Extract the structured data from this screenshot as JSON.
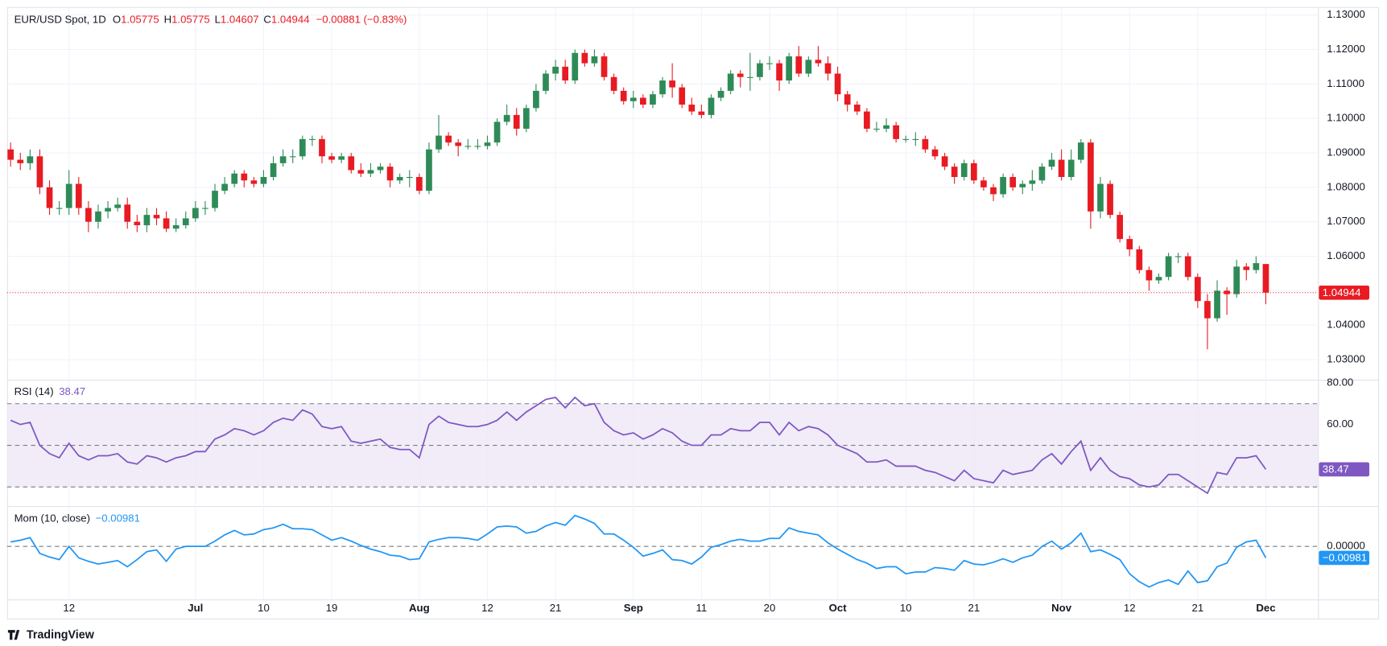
{
  "header": {
    "title": "EUR/USD Spot, 1D",
    "ohlc": [
      {
        "key": "O",
        "value": "1.05775"
      },
      {
        "key": "H",
        "value": "1.05775"
      },
      {
        "key": "L",
        "value": "1.04607"
      },
      {
        "key": "C",
        "value": "1.04944"
      }
    ],
    "change": "−0.00881 (−0.83%)"
  },
  "footer": "TradingView",
  "chart_data": [
    {
      "type": "candlestick",
      "up_color": "#2e8b57",
      "down_color": "#e81b23",
      "grid": true,
      "last_price_line": true,
      "ylim": [
        1.0243,
        1.1323
      ],
      "yticks": [
        {
          "value": 1.03,
          "label": "1.03000"
        },
        {
          "value": 1.04,
          "label": "1.04000"
        },
        {
          "value": 1.05,
          "label": "1.05000"
        },
        {
          "value": 1.06,
          "label": "1.06000"
        },
        {
          "value": 1.07,
          "label": "1.07000"
        },
        {
          "value": 1.08,
          "label": "1.08000"
        },
        {
          "value": 1.09,
          "label": "1.09000"
        },
        {
          "value": 1.1,
          "label": "1.10000"
        },
        {
          "value": 1.11,
          "label": "1.11000"
        },
        {
          "value": 1.12,
          "label": "1.12000"
        },
        {
          "value": 1.13,
          "label": "1.13000"
        }
      ],
      "open": [
        1.091,
        1.088,
        1.087,
        1.089,
        1.08,
        1.074,
        1.074,
        1.081,
        1.074,
        1.07,
        1.073,
        1.074,
        1.075,
        1.07,
        1.069,
        1.072,
        1.071,
        1.068,
        1.069,
        1.071,
        1.074,
        1.074,
        1.079,
        1.081,
        1.084,
        1.082,
        1.081,
        1.083,
        1.087,
        1.089,
        1.089,
        1.094,
        1.094,
        1.089,
        1.088,
        1.089,
        1.085,
        1.084,
        1.085,
        1.086,
        1.082,
        1.083,
        1.083,
        1.079,
        1.091,
        1.095,
        1.093,
        1.092,
        1.092,
        1.092,
        1.093,
        1.099,
        1.101,
        1.097,
        1.103,
        1.108,
        1.113,
        1.115,
        1.111,
        1.119,
        1.116,
        1.118,
        1.112,
        1.108,
        1.105,
        1.106,
        1.104,
        1.107,
        1.111,
        1.109,
        1.104,
        1.102,
        1.101,
        1.106,
        1.108,
        1.113,
        1.112,
        1.112,
        1.116,
        1.116,
        1.111,
        1.118,
        1.113,
        1.117,
        1.116,
        1.113,
        1.107,
        1.104,
        1.102,
        1.097,
        1.097,
        1.098,
        1.094,
        1.094,
        1.094,
        1.091,
        1.089,
        1.086,
        1.083,
        1.087,
        1.082,
        1.08,
        1.078,
        1.083,
        1.08,
        1.081,
        1.082,
        1.086,
        1.088,
        1.083,
        1.088,
        1.093,
        1.073,
        1.081,
        1.072,
        1.065,
        1.062,
        1.056,
        1.053,
        1.054,
        1.06,
        1.06,
        1.054,
        1.047,
        1.042,
        1.05,
        1.049,
        1.057,
        1.056,
        1.05775
      ],
      "high": [
        1.093,
        1.09,
        1.091,
        1.091,
        1.082,
        1.076,
        1.085,
        1.083,
        1.076,
        1.075,
        1.076,
        1.077,
        1.077,
        1.072,
        1.074,
        1.074,
        1.073,
        1.071,
        1.073,
        1.076,
        1.076,
        1.081,
        1.083,
        1.085,
        1.085,
        1.083,
        1.085,
        1.089,
        1.091,
        1.091,
        1.095,
        1.095,
        1.095,
        1.09,
        1.09,
        1.09,
        1.087,
        1.087,
        1.087,
        1.087,
        1.084,
        1.085,
        1.084,
        1.093,
        1.101,
        1.096,
        1.094,
        1.094,
        1.094,
        1.095,
        1.1,
        1.104,
        1.103,
        1.104,
        1.11,
        1.114,
        1.117,
        1.117,
        1.12,
        1.12,
        1.12,
        1.119,
        1.113,
        1.109,
        1.108,
        1.107,
        1.108,
        1.112,
        1.116,
        1.11,
        1.106,
        1.104,
        1.107,
        1.109,
        1.114,
        1.114,
        1.119,
        1.117,
        1.118,
        1.117,
        1.119,
        1.121,
        1.118,
        1.121,
        1.118,
        1.115,
        1.108,
        1.105,
        1.103,
        1.099,
        1.1,
        1.099,
        1.095,
        1.096,
        1.095,
        1.092,
        1.09,
        1.087,
        1.088,
        1.088,
        1.083,
        1.081,
        1.084,
        1.084,
        1.082,
        1.085,
        1.087,
        1.09,
        1.091,
        1.091,
        1.094,
        1.094,
        1.083,
        1.082,
        1.073,
        1.066,
        1.063,
        1.057,
        1.055,
        1.061,
        1.061,
        1.061,
        1.055,
        1.049,
        1.053,
        1.051,
        1.059,
        1.058,
        1.06,
        1.05775
      ],
      "low": [
        1.086,
        1.085,
        1.085,
        1.078,
        1.072,
        1.072,
        1.072,
        1.072,
        1.067,
        1.068,
        1.071,
        1.073,
        1.068,
        1.067,
        1.067,
        1.069,
        1.067,
        1.067,
        1.068,
        1.07,
        1.072,
        1.073,
        1.078,
        1.08,
        1.08,
        1.08,
        1.08,
        1.082,
        1.086,
        1.087,
        1.088,
        1.092,
        1.087,
        1.087,
        1.087,
        1.084,
        1.083,
        1.083,
        1.084,
        1.08,
        1.081,
        1.08,
        1.078,
        1.078,
        1.09,
        1.092,
        1.089,
        1.091,
        1.091,
        1.091,
        1.092,
        1.098,
        1.095,
        1.096,
        1.102,
        1.107,
        1.111,
        1.11,
        1.11,
        1.115,
        1.115,
        1.111,
        1.107,
        1.104,
        1.103,
        1.103,
        1.103,
        1.106,
        1.106,
        1.103,
        1.101,
        1.1,
        1.1,
        1.105,
        1.107,
        1.109,
        1.108,
        1.111,
        1.114,
        1.108,
        1.11,
        1.112,
        1.112,
        1.115,
        1.111,
        1.105,
        1.102,
        1.101,
        1.096,
        1.096,
        1.096,
        1.093,
        1.093,
        1.092,
        1.09,
        1.088,
        1.085,
        1.081,
        1.082,
        1.081,
        1.079,
        1.076,
        1.077,
        1.079,
        1.078,
        1.079,
        1.081,
        1.085,
        1.082,
        1.082,
        1.087,
        1.068,
        1.071,
        1.071,
        1.064,
        1.06,
        1.055,
        1.05,
        1.052,
        1.053,
        1.058,
        1.053,
        1.045,
        1.033,
        1.041,
        1.043,
        1.048,
        1.053,
        1.055,
        1.04607
      ],
      "close": [
        1.088,
        1.087,
        1.089,
        1.08,
        1.074,
        1.074,
        1.081,
        1.074,
        1.07,
        1.073,
        1.074,
        1.075,
        1.07,
        1.069,
        1.072,
        1.071,
        1.068,
        1.069,
        1.071,
        1.074,
        1.074,
        1.079,
        1.081,
        1.084,
        1.082,
        1.081,
        1.083,
        1.087,
        1.089,
        1.089,
        1.094,
        1.094,
        1.089,
        1.088,
        1.089,
        1.085,
        1.084,
        1.085,
        1.086,
        1.082,
        1.083,
        1.083,
        1.079,
        1.091,
        1.095,
        1.093,
        1.092,
        1.092,
        1.092,
        1.093,
        1.099,
        1.101,
        1.097,
        1.103,
        1.108,
        1.113,
        1.115,
        1.111,
        1.119,
        1.116,
        1.118,
        1.112,
        1.108,
        1.105,
        1.106,
        1.104,
        1.107,
        1.111,
        1.109,
        1.104,
        1.102,
        1.101,
        1.106,
        1.108,
        1.113,
        1.112,
        1.112,
        1.116,
        1.116,
        1.111,
        1.118,
        1.113,
        1.117,
        1.116,
        1.113,
        1.107,
        1.104,
        1.102,
        1.097,
        1.097,
        1.098,
        1.094,
        1.094,
        1.094,
        1.091,
        1.089,
        1.086,
        1.083,
        1.087,
        1.082,
        1.08,
        1.078,
        1.083,
        1.08,
        1.081,
        1.082,
        1.086,
        1.088,
        1.083,
        1.088,
        1.093,
        1.073,
        1.081,
        1.072,
        1.065,
        1.062,
        1.056,
        1.053,
        1.054,
        1.06,
        1.06,
        1.054,
        1.047,
        1.042,
        1.05,
        1.049,
        1.057,
        1.056,
        1.058,
        1.04944
      ]
    },
    {
      "type": "line",
      "legend_value": "38.47",
      "band_color": "#ede7f6",
      "hlines": [
        70,
        50,
        30
      ],
      "ylim": [
        21.3,
        80.85
      ],
      "yticks": [
        {
          "value": 80,
          "label": "80.00"
        },
        {
          "value": 60,
          "label": "60.00"
        }
      ],
      "series": [
        {
          "name": "RSI (14)",
          "color": "#7e57c2",
          "values": [
            62,
            60,
            61,
            50,
            46,
            44,
            51,
            45,
            43,
            45,
            45,
            46,
            42,
            41,
            45,
            44,
            42,
            44,
            45,
            47,
            47,
            53,
            55,
            58,
            57,
            55,
            57,
            61,
            63,
            62,
            67,
            65,
            59,
            58,
            59,
            52,
            51,
            52,
            53,
            49,
            48,
            48,
            44,
            60,
            64,
            61,
            60,
            59,
            59,
            60,
            62,
            66,
            62,
            66,
            69,
            72,
            73,
            68,
            73,
            69,
            70,
            61,
            57,
            55,
            56,
            53,
            55,
            58,
            56,
            52,
            50,
            50,
            55,
            55,
            58,
            57,
            57,
            61,
            61,
            55,
            61,
            57,
            59,
            58,
            55,
            50,
            48,
            46,
            42,
            42,
            43,
            40,
            40,
            40,
            38,
            37,
            35,
            33,
            38,
            34,
            33,
            32,
            38,
            36,
            37,
            38,
            43,
            46,
            41,
            47,
            52,
            38,
            44,
            38,
            35,
            34,
            31,
            30,
            31,
            36,
            36,
            33,
            30,
            27,
            37,
            36,
            44,
            44,
            45,
            38.47
          ]
        }
      ]
    },
    {
      "type": "line",
      "legend_value": "−0.00981",
      "hlines": [
        0
      ],
      "ylim": [
        -0.045,
        0.033
      ],
      "yticks": [
        {
          "value": 0,
          "label": "0.00000"
        }
      ],
      "xticks": [
        {
          "value": 6,
          "label": "12"
        },
        {
          "value": 19,
          "label": "Jul"
        },
        {
          "value": 26,
          "label": "10"
        },
        {
          "value": 33,
          "label": "19"
        },
        {
          "value": 42,
          "label": "Aug"
        },
        {
          "value": 49,
          "label": "12"
        },
        {
          "value": 56,
          "label": "21"
        },
        {
          "value": 64,
          "label": "Sep"
        },
        {
          "value": 71,
          "label": "11"
        },
        {
          "value": 78,
          "label": "20"
        },
        {
          "value": 85,
          "label": "Oct"
        },
        {
          "value": 92,
          "label": "10"
        },
        {
          "value": 99,
          "label": "21"
        },
        {
          "value": 108,
          "label": "Nov"
        },
        {
          "value": 115,
          "label": "12"
        },
        {
          "value": 122,
          "label": "21"
        },
        {
          "value": 129,
          "label": "Dec"
        }
      ],
      "series": [
        {
          "name": "Mom (10, close)",
          "color": "#2196f3",
          "values": [
            0.0038,
            0.0053,
            0.0075,
            -0.006,
            -0.0091,
            -0.0113,
            0,
            -0.0098,
            -0.0128,
            -0.0151,
            -0.0136,
            -0.0121,
            -0.0174,
            -0.0113,
            -0.0045,
            -0.003,
            -0.0128,
            -0.0023,
            0,
            0,
            0,
            0.0045,
            0.0098,
            0.0136,
            0.0098,
            0.0106,
            0.0143,
            0.0158,
            0.0189,
            0.0151,
            0.0151,
            0.0143,
            0.0098,
            0.0053,
            0.0075,
            0.0045,
            0.0008,
            -0.0023,
            -0.0045,
            -0.0075,
            -0.0083,
            -0.0113,
            -0.0106,
            0.0038,
            0.006,
            0.0075,
            0.0075,
            0.0068,
            0.0053,
            0.0106,
            0.0166,
            0.0174,
            0.0166,
            0.0113,
            0.0128,
            0.0174,
            0.0204,
            0.0181,
            0.0264,
            0.0234,
            0.0196,
            0.0106,
            0.0106,
            0.0053,
            -0.0008,
            -0.0083,
            -0.006,
            -0.003,
            -0.0113,
            -0.0121,
            -0.0151,
            -0.0091,
            -0.0008,
            0.0015,
            0.0045,
            0.006,
            0.0045,
            0.0045,
            0.0068,
            0.0068,
            0.0158,
            0.0128,
            0.0113,
            0.0098,
            0.003,
            -0.0023,
            -0.0068,
            -0.0113,
            -0.0143,
            -0.0189,
            -0.0174,
            -0.0174,
            -0.0234,
            -0.0219,
            -0.0219,
            -0.0181,
            -0.0189,
            -0.0204,
            -0.0121,
            -0.0151,
            -0.0158,
            -0.0136,
            -0.0106,
            -0.0136,
            -0.0098,
            -0.0075,
            0,
            0.0045,
            -0.0023,
            0.003,
            0.0113,
            -0.0045,
            -0.003,
            -0.0068,
            -0.0113,
            -0.0234,
            -0.0302,
            -0.0347,
            -0.0309,
            -0.0287,
            -0.0325,
            -0.0211,
            -0.0309,
            -0.0294,
            -0.0174,
            -0.0143,
            -0.0008,
            0.0038,
            0.0053,
            -0.00981
          ]
        }
      ]
    }
  ]
}
